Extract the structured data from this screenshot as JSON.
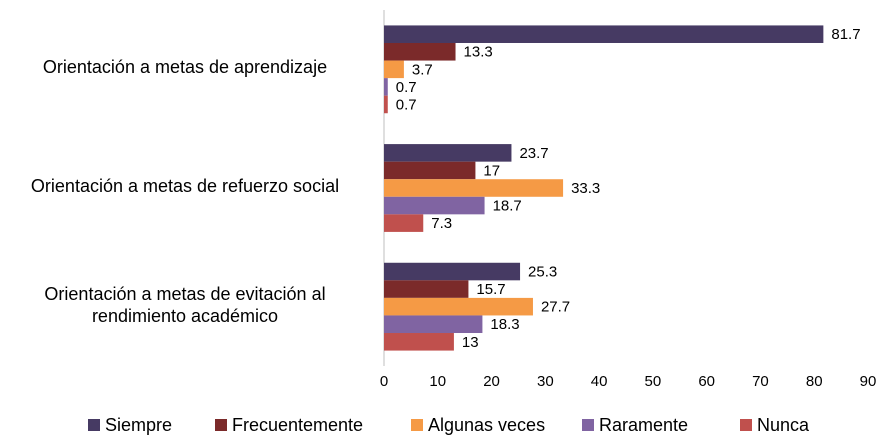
{
  "chart_data": {
    "type": "bar",
    "orientation": "horizontal",
    "categories": [
      "Orientación a metas de aprendizaje",
      "Orientación a metas de refuerzo social",
      "Orientación a metas de evitación al rendimiento académico"
    ],
    "series": [
      {
        "name": "Siempre",
        "color": "#463a63",
        "values": [
          81.7,
          23.7,
          25.3
        ]
      },
      {
        "name": "Frecuentemente",
        "color": "#7b2a2a",
        "values": [
          13.3,
          17,
          15.7
        ]
      },
      {
        "name": "Algunas veces",
        "color": "#f59a45",
        "values": [
          3.7,
          33.3,
          27.7
        ]
      },
      {
        "name": "Raramente",
        "color": "#8064a2",
        "values": [
          0.7,
          18.7,
          18.3
        ]
      },
      {
        "name": "Nunca",
        "color": "#c0504d",
        "values": [
          0.7,
          7.3,
          13
        ]
      }
    ],
    "xlim": [
      0,
      90
    ],
    "xticks": [
      0,
      10,
      20,
      30,
      40,
      50,
      60,
      70,
      80,
      90
    ],
    "grid": false,
    "legend": "bottom"
  }
}
